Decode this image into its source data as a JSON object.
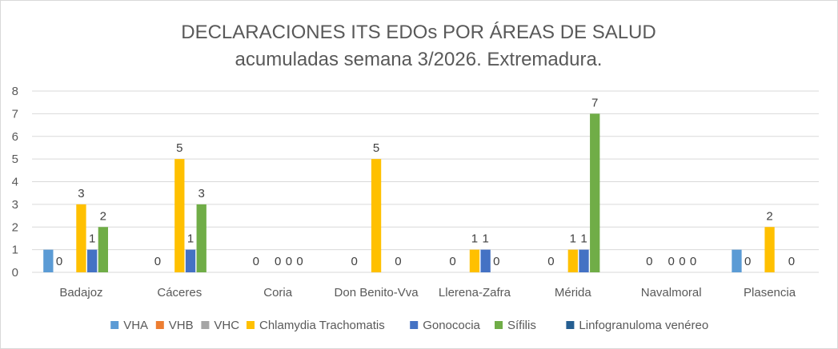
{
  "chart_data": {
    "type": "bar",
    "title": "DECLARACIONES ITS EDOs POR ÁREAS DE SALUD",
    "subtitle": "acumuladas semana 3/2026. Extremadura.",
    "xlabel": "",
    "ylabel": "",
    "ylim": [
      0,
      8
    ],
    "yticks": [
      0,
      1,
      2,
      3,
      4,
      5,
      6,
      7,
      8
    ],
    "grid": true,
    "legend_position": "bottom",
    "categories": [
      "Badajoz",
      "Cáceres",
      "Coria",
      "Don Benito-Vva",
      "Llerena-Zafra",
      "Mérida",
      "Navalmoral",
      "Plasencia"
    ],
    "series": [
      {
        "name": "VHA",
        "color": "#5b9bd5",
        "values": [
          1,
          null,
          null,
          null,
          null,
          null,
          null,
          1
        ],
        "labels": [
          "",
          "",
          "",
          "",
          "",
          "",
          "",
          ""
        ]
      },
      {
        "name": "VHB",
        "color": "#ed7d31",
        "values": [
          0,
          0,
          0,
          0,
          0,
          0,
          0,
          0
        ],
        "labels": [
          "0",
          "0",
          "0",
          "0",
          "0",
          "0",
          "0",
          "0"
        ]
      },
      {
        "name": "VHC",
        "color": "#a5a5a5",
        "values": [
          null,
          null,
          null,
          null,
          null,
          null,
          null,
          null
        ],
        "labels": [
          "",
          "",
          "",
          "",
          "",
          "",
          "",
          ""
        ]
      },
      {
        "name": "Chlamydia Trachomatis",
        "color": "#ffc000",
        "values": [
          3,
          5,
          0,
          5,
          1,
          1,
          0,
          2
        ],
        "labels": [
          "3",
          "5",
          "0",
          "5",
          "1",
          "1",
          "0",
          "2"
        ]
      },
      {
        "name": "Gonococia",
        "color": "#4472c4",
        "values": [
          1,
          1,
          0,
          null,
          1,
          1,
          0,
          null
        ],
        "labels": [
          "1",
          "1",
          "0",
          "",
          "1",
          "1",
          "0",
          ""
        ]
      },
      {
        "name": "Sífilis",
        "color": "#70ad47",
        "values": [
          2,
          3,
          0,
          0,
          0,
          7,
          0,
          0
        ],
        "labels": [
          "2",
          "3",
          "0",
          "0",
          "0",
          "7",
          "0",
          "0"
        ]
      },
      {
        "name": "Linfogranuloma venéreo",
        "color": "#255e91",
        "values": [
          null,
          null,
          null,
          null,
          null,
          null,
          null,
          null
        ],
        "labels": [
          "",
          "",
          "",
          "",
          "",
          "",
          "",
          ""
        ]
      }
    ]
  }
}
